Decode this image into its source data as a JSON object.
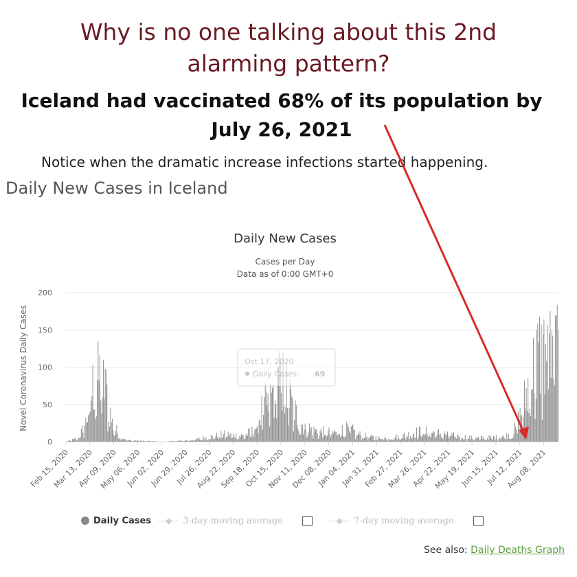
{
  "headline": "Why is no one talking about this 2nd alarming pattern?",
  "subheadline": "Iceland had vaccinated 68% of its population by July 26, 2021",
  "note": "Notice when the dramatic increase infections started happening.",
  "section_title": "Daily New Cases in Iceland",
  "see_also_prefix": "See also:",
  "see_also_link": "Daily Deaths Graph",
  "colors": {
    "headline": "#6b1a22",
    "bars": "#8c8c8c",
    "arrow": "#d62b2b",
    "link": "#5b9b3d"
  },
  "legend": {
    "daily": "Daily Cases",
    "ma3": "3-day moving average",
    "ma7": "7-day moving average"
  },
  "tooltip": {
    "date": "Oct 17, 2020",
    "label": "Daily Cases:",
    "value": "69"
  },
  "chart_data": {
    "type": "bar",
    "title": "Daily New Cases",
    "subtitle": "Cases per Day",
    "subtitle2": "Data as of 0:00 GMT+0",
    "ylabel": "Novel Coronavirus Daily Cases",
    "xlabel": "",
    "ylim": [
      0,
      200
    ],
    "yticks": [
      0,
      50,
      100,
      150,
      200
    ],
    "grid": true,
    "x_start": "Feb 15, 2020",
    "x_tick_labels": [
      "Feb 15, 2020",
      "Mar 13, 2020",
      "Apr 09, 2020",
      "May 06, 2020",
      "Jun 02, 2020",
      "Jun 29, 2020",
      "Jul 26, 2020",
      "Aug 22, 2020",
      "Sep 18, 2020",
      "Oct 15, 2020",
      "Nov 11, 2020",
      "Dec 08, 2020",
      "Jan 04, 2021",
      "Jan 31, 2021",
      "Feb 27, 2021",
      "Mar 26, 2021",
      "Apr 22, 2021",
      "May 19, 2021",
      "Jun 15, 2021",
      "Jul 12, 2021",
      "Aug 08, 2021"
    ],
    "tick_interval_days": 27,
    "profile": [
      {
        "day": 0,
        "value": 0
      },
      {
        "day": 14,
        "value": 5
      },
      {
        "day": 22,
        "value": 25
      },
      {
        "day": 30,
        "value": 75
      },
      {
        "day": 38,
        "value": 90
      },
      {
        "day": 44,
        "value": 75
      },
      {
        "day": 52,
        "value": 25
      },
      {
        "day": 60,
        "value": 8
      },
      {
        "day": 70,
        "value": 2
      },
      {
        "day": 110,
        "value": 0
      },
      {
        "day": 140,
        "value": 2
      },
      {
        "day": 160,
        "value": 6
      },
      {
        "day": 180,
        "value": 10
      },
      {
        "day": 200,
        "value": 8
      },
      {
        "day": 212,
        "value": 15
      },
      {
        "day": 222,
        "value": 45
      },
      {
        "day": 232,
        "value": 60
      },
      {
        "day": 240,
        "value": 90
      },
      {
        "day": 246,
        "value": 80
      },
      {
        "day": 255,
        "value": 50
      },
      {
        "day": 265,
        "value": 25
      },
      {
        "day": 280,
        "value": 15
      },
      {
        "day": 300,
        "value": 12
      },
      {
        "day": 320,
        "value": 18
      },
      {
        "day": 330,
        "value": 10
      },
      {
        "day": 345,
        "value": 6
      },
      {
        "day": 365,
        "value": 5
      },
      {
        "day": 380,
        "value": 8
      },
      {
        "day": 400,
        "value": 14
      },
      {
        "day": 420,
        "value": 12
      },
      {
        "day": 440,
        "value": 8
      },
      {
        "day": 460,
        "value": 5
      },
      {
        "day": 485,
        "value": 6
      },
      {
        "day": 505,
        "value": 10
      },
      {
        "day": 515,
        "value": 40
      },
      {
        "day": 525,
        "value": 90
      },
      {
        "day": 535,
        "value": 120
      },
      {
        "day": 545,
        "value": 125
      },
      {
        "day": 555,
        "value": 115
      }
    ],
    "spikes": [
      {
        "day": 44,
        "value": 98
      },
      {
        "day": 240,
        "value": 100
      },
      {
        "day": 234,
        "value": 76
      },
      {
        "day": 537,
        "value": 157
      },
      {
        "day": 544,
        "value": 157
      },
      {
        "day": 549,
        "value": 150
      },
      {
        "day": 553,
        "value": 169
      },
      {
        "day": 546,
        "value": 145
      }
    ],
    "last_day": 556
  }
}
